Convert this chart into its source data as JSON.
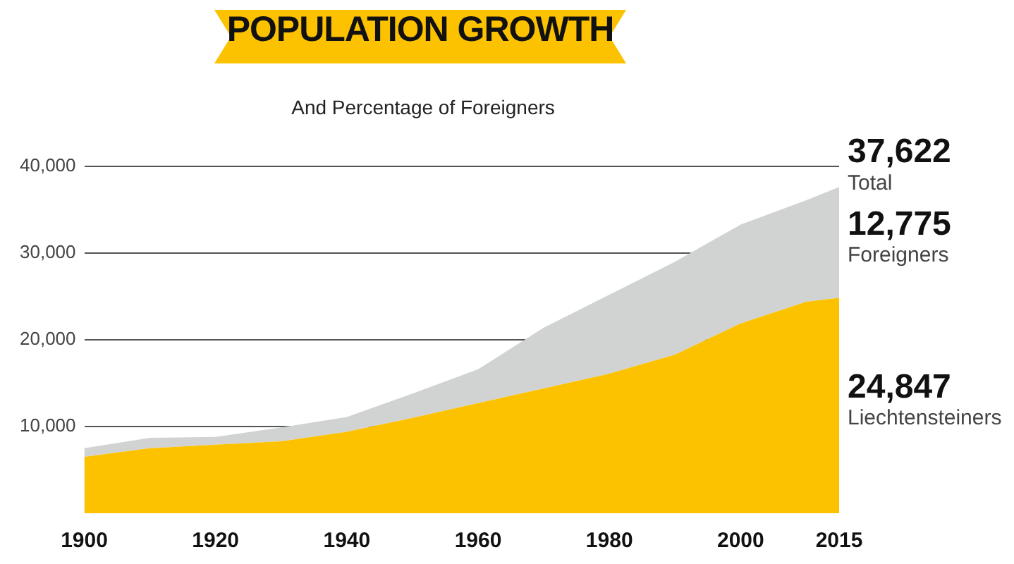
{
  "chart_data": {
    "type": "area",
    "title": "POPULATION GROWTH",
    "subtitle": "And Percentage of Foreigners",
    "x": [
      1900,
      1910,
      1920,
      1930,
      1940,
      1950,
      1960,
      1970,
      1980,
      1990,
      2000,
      2010,
      2015
    ],
    "stacked": true,
    "series": [
      {
        "name": "Liechtensteiners",
        "color": "#fcc200",
        "values": [
          6500,
          7500,
          7900,
          8300,
          9400,
          11000,
          12700,
          14400,
          16100,
          18300,
          21900,
          24400,
          24847
        ],
        "value_labels": [
          null,
          null,
          null,
          null,
          null,
          null,
          null,
          null,
          null,
          null,
          null,
          null,
          "24,847"
        ]
      },
      {
        "name": "Foreigners",
        "color": "#d1d3d2",
        "values": [
          1000,
          1200,
          900,
          1600,
          1700,
          2800,
          3900,
          7000,
          9100,
          10700,
          11400,
          11700,
          12775
        ],
        "value_labels": [
          null,
          null,
          null,
          null,
          null,
          null,
          null,
          null,
          null,
          null,
          null,
          null,
          "12,775"
        ]
      }
    ],
    "annotations": [
      {
        "text": "37,622",
        "x": 2015,
        "y": 37622
      },
      {
        "text": "Total",
        "x": 2015,
        "y": 37622
      }
    ],
    "xlim": [
      1900,
      2015
    ],
    "xticks": [
      1900,
      1920,
      1940,
      1960,
      1980,
      2000,
      2015
    ],
    "ylim": [
      0,
      40000
    ],
    "yticks": [
      {
        "value": 10000,
        "label": "10,000"
      },
      {
        "value": 20000,
        "label": "20,000"
      },
      {
        "value": 30000,
        "label": "30,000"
      },
      {
        "value": 40000,
        "label": "40,000"
      }
    ],
    "grid": "y"
  }
}
